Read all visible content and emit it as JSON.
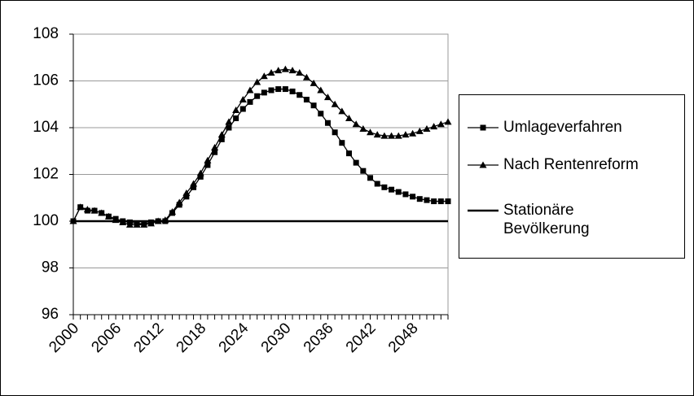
{
  "chart_data": {
    "type": "line",
    "categories": [
      "2000",
      null,
      null,
      null,
      null,
      null,
      "2006",
      null,
      null,
      null,
      null,
      null,
      "2012",
      null,
      null,
      null,
      null,
      null,
      "2018",
      null,
      null,
      null,
      null,
      null,
      "2024",
      null,
      null,
      null,
      null,
      null,
      "2030",
      null,
      null,
      null,
      null,
      null,
      "2036",
      null,
      null,
      null,
      null,
      null,
      "2042",
      null,
      null,
      null,
      null,
      null,
      "2048",
      null,
      null,
      null,
      null,
      null
    ],
    "series": [
      {
        "name": "Umlageverfahren",
        "color": "#000000",
        "marker": "square",
        "values": [
          100,
          100.6,
          100.45,
          100.45,
          100.35,
          100.2,
          100.1,
          100.0,
          99.95,
          99.9,
          99.9,
          99.95,
          100.0,
          100.0,
          100.35,
          100.7,
          101.05,
          101.45,
          101.9,
          102.4,
          102.95,
          103.5,
          104.0,
          104.4,
          104.8,
          105.1,
          105.35,
          105.5,
          105.6,
          105.65,
          105.65,
          105.55,
          105.4,
          105.2,
          104.95,
          104.6,
          104.2,
          103.8,
          103.35,
          102.9,
          102.5,
          102.15,
          101.85,
          101.6,
          101.45,
          101.35,
          101.25,
          101.15,
          101.05,
          100.95,
          100.9,
          100.85,
          100.85,
          100.85
        ]
      },
      {
        "name": "Nach Rentenreform",
        "color": "#000000",
        "marker": "triangle",
        "values": [
          100,
          100.6,
          100.5,
          100.45,
          100.35,
          100.2,
          100.05,
          99.95,
          99.85,
          99.85,
          99.85,
          99.9,
          100.0,
          100.05,
          100.4,
          100.8,
          101.2,
          101.6,
          102.05,
          102.6,
          103.15,
          103.7,
          104.25,
          104.75,
          105.2,
          105.6,
          105.95,
          106.2,
          106.35,
          106.45,
          106.5,
          106.45,
          106.35,
          106.15,
          105.9,
          105.6,
          105.3,
          105.0,
          104.7,
          104.4,
          104.15,
          103.95,
          103.8,
          103.7,
          103.65,
          103.65,
          103.65,
          103.7,
          103.75,
          103.85,
          103.95,
          104.05,
          104.15,
          104.25
        ]
      },
      {
        "name": "Stationäre Bevölkerung",
        "color": "#000000",
        "marker": "none",
        "values": [
          100,
          100,
          100,
          100,
          100,
          100,
          100,
          100,
          100,
          100,
          100,
          100,
          100,
          100,
          100,
          100,
          100,
          100,
          100,
          100,
          100,
          100,
          100,
          100,
          100,
          100,
          100,
          100,
          100,
          100,
          100,
          100,
          100,
          100,
          100,
          100,
          100,
          100,
          100,
          100,
          100,
          100,
          100,
          100,
          100,
          100,
          100,
          100,
          100,
          100,
          100,
          100,
          100,
          100
        ]
      }
    ],
    "ylim": [
      96,
      108
    ],
    "yticks": [
      96,
      98,
      100,
      102,
      104,
      106,
      108
    ],
    "grid": true,
    "legend": "right"
  }
}
